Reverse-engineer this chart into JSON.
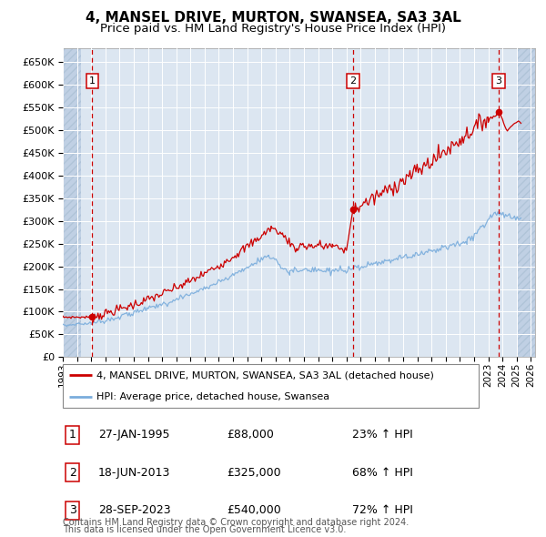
{
  "title": "4, MANSEL DRIVE, MURTON, SWANSEA, SA3 3AL",
  "subtitle": "Price paid vs. HM Land Registry's House Price Index (HPI)",
  "ylim": [
    0,
    680000
  ],
  "yticks": [
    0,
    50000,
    100000,
    150000,
    200000,
    250000,
    300000,
    350000,
    400000,
    450000,
    500000,
    550000,
    600000,
    650000
  ],
  "xlim_start": 1993.0,
  "xlim_end": 2026.3,
  "xticks": [
    1993,
    1994,
    1995,
    1996,
    1997,
    1998,
    1999,
    2000,
    2001,
    2002,
    2003,
    2004,
    2005,
    2006,
    2007,
    2008,
    2009,
    2010,
    2011,
    2012,
    2013,
    2014,
    2015,
    2016,
    2017,
    2018,
    2019,
    2020,
    2021,
    2022,
    2023,
    2024,
    2025,
    2026
  ],
  "plot_bg_color": "#dce6f1",
  "hatch_color": "#c0d0e4",
  "grid_color": "#ffffff",
  "red_line_color": "#cc0000",
  "blue_line_color": "#7aaddc",
  "marker_color": "#cc0000",
  "purchases": [
    {
      "year": 1995.07,
      "price": 88000,
      "label": "1"
    },
    {
      "year": 2013.46,
      "price": 325000,
      "label": "2"
    },
    {
      "year": 2023.74,
      "price": 540000,
      "label": "3"
    }
  ],
  "legend_line1": "4, MANSEL DRIVE, MURTON, SWANSEA, SA3 3AL (detached house)",
  "legend_line2": "HPI: Average price, detached house, Swansea",
  "table_rows": [
    [
      "1",
      "27-JAN-1995",
      "£88,000",
      "23% ↑ HPI"
    ],
    [
      "2",
      "18-JUN-2013",
      "£325,000",
      "68% ↑ HPI"
    ],
    [
      "3",
      "28-SEP-2023",
      "£540,000",
      "72% ↑ HPI"
    ]
  ],
  "footer_line1": "Contains HM Land Registry data © Crown copyright and database right 2024.",
  "footer_line2": "This data is licensed under the Open Government Licence v3.0."
}
